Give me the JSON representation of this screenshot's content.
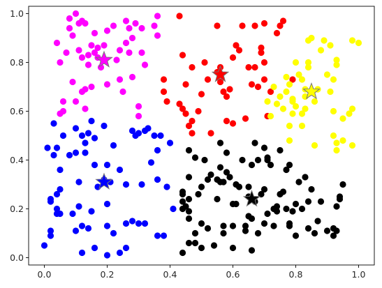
{
  "chart_data": {
    "type": "scatter",
    "title": "",
    "xlabel": "",
    "ylabel": "",
    "xlim": [
      -0.05,
      1.05
    ],
    "ylim": [
      -0.03,
      1.03
    ],
    "grid": false,
    "legend": "none",
    "x_ticks": [
      "0.0",
      "0.2",
      "0.4",
      "0.6",
      "0.8",
      "1.0"
    ],
    "y_ticks": [
      "0.0",
      "0.2",
      "0.4",
      "0.6",
      "0.8",
      "1.0"
    ],
    "series": [
      {
        "color": "#ff00ff",
        "points": [
          [
            0.04,
            0.88
          ],
          [
            0.05,
            0.8
          ],
          [
            0.06,
            0.6
          ],
          [
            0.05,
            0.59
          ],
          [
            0.06,
            0.64
          ],
          [
            0.07,
            0.84
          ],
          [
            0.08,
            0.94
          ],
          [
            0.09,
            0.72
          ],
          [
            0.08,
            0.98
          ],
          [
            0.09,
            0.91
          ],
          [
            0.1,
            0.64
          ],
          [
            0.1,
            1.0
          ],
          [
            0.11,
            0.96
          ],
          [
            0.11,
            0.85
          ],
          [
            0.12,
            0.82
          ],
          [
            0.12,
            0.68
          ],
          [
            0.12,
            0.97
          ],
          [
            0.13,
            0.61
          ],
          [
            0.13,
            0.69
          ],
          [
            0.13,
            0.96
          ],
          [
            0.14,
            0.79
          ],
          [
            0.14,
            0.83
          ],
          [
            0.15,
            0.87
          ],
          [
            0.15,
            0.7
          ],
          [
            0.16,
            0.84
          ],
          [
            0.16,
            0.92
          ],
          [
            0.17,
            0.82
          ],
          [
            0.17,
            0.86
          ],
          [
            0.18,
            0.78
          ],
          [
            0.19,
            0.87
          ],
          [
            0.2,
            0.71
          ],
          [
            0.2,
            0.93
          ],
          [
            0.22,
            0.95
          ],
          [
            0.23,
            0.81
          ],
          [
            0.24,
            0.85
          ],
          [
            0.24,
            0.73
          ],
          [
            0.25,
            0.68
          ],
          [
            0.26,
            0.97
          ],
          [
            0.26,
            0.88
          ],
          [
            0.27,
            0.94
          ],
          [
            0.27,
            0.84
          ],
          [
            0.28,
            0.74
          ],
          [
            0.28,
            0.9
          ],
          [
            0.29,
            0.96
          ],
          [
            0.3,
            0.62
          ],
          [
            0.3,
            0.58
          ],
          [
            0.31,
            0.84
          ],
          [
            0.31,
            0.94
          ],
          [
            0.32,
            0.79
          ],
          [
            0.35,
            0.95
          ],
          [
            0.36,
            0.91
          ],
          [
            0.36,
            0.99
          ]
        ]
      },
      {
        "color": "#ff0000",
        "points": [
          [
            0.38,
            0.73
          ],
          [
            0.38,
            0.68
          ],
          [
            0.39,
            0.64
          ],
          [
            0.43,
            0.99
          ],
          [
            0.43,
            0.63
          ],
          [
            0.44,
            0.61
          ],
          [
            0.44,
            0.83
          ],
          [
            0.45,
            0.59
          ],
          [
            0.45,
            0.71
          ],
          [
            0.46,
            0.54
          ],
          [
            0.47,
            0.51
          ],
          [
            0.47,
            0.56
          ],
          [
            0.47,
            0.78
          ],
          [
            0.49,
            0.6
          ],
          [
            0.5,
            0.67
          ],
          [
            0.51,
            0.8
          ],
          [
            0.52,
            0.73
          ],
          [
            0.53,
            0.51
          ],
          [
            0.55,
            0.95
          ],
          [
            0.55,
            0.76
          ],
          [
            0.56,
            0.78
          ],
          [
            0.56,
            0.72
          ],
          [
            0.57,
            0.68
          ],
          [
            0.58,
            0.66
          ],
          [
            0.58,
            0.56
          ],
          [
            0.59,
            0.69
          ],
          [
            0.6,
            0.55
          ],
          [
            0.6,
            0.82
          ],
          [
            0.61,
            0.87
          ],
          [
            0.62,
            0.85
          ],
          [
            0.63,
            0.95
          ],
          [
            0.64,
            0.57
          ],
          [
            0.65,
            0.78
          ],
          [
            0.66,
            0.71
          ],
          [
            0.67,
            0.78
          ],
          [
            0.67,
            0.95
          ],
          [
            0.68,
            0.7
          ],
          [
            0.69,
            0.86
          ],
          [
            0.69,
            0.84
          ],
          [
            0.7,
            0.96
          ],
          [
            0.7,
            0.73
          ],
          [
            0.7,
            0.8
          ],
          [
            0.71,
            0.58
          ],
          [
            0.72,
            0.68
          ],
          [
            0.74,
            0.92
          ],
          [
            0.75,
            0.95
          ],
          [
            0.76,
            0.97
          ],
          [
            0.79,
            0.73
          ]
        ]
      },
      {
        "color": "#ffff00",
        "points": [
          [
            0.71,
            0.64
          ],
          [
            0.72,
            0.58
          ],
          [
            0.73,
            0.7
          ],
          [
            0.74,
            0.63
          ],
          [
            0.75,
            0.66
          ],
          [
            0.76,
            0.61
          ],
          [
            0.77,
            0.74
          ],
          [
            0.77,
            0.68
          ],
          [
            0.78,
            0.71
          ],
          [
            0.78,
            0.54
          ],
          [
            0.78,
            0.48
          ],
          [
            0.79,
            0.65
          ],
          [
            0.79,
            0.59
          ],
          [
            0.79,
            0.64
          ],
          [
            0.79,
            0.65
          ],
          [
            0.8,
            0.8
          ],
          [
            0.8,
            0.62
          ],
          [
            0.81,
            0.75
          ],
          [
            0.82,
            0.73
          ],
          [
            0.82,
            0.54
          ],
          [
            0.82,
            0.59
          ],
          [
            0.83,
            0.69
          ],
          [
            0.83,
            0.66
          ],
          [
            0.83,
            0.61
          ],
          [
            0.84,
            0.89
          ],
          [
            0.84,
            0.78
          ],
          [
            0.84,
            0.8
          ],
          [
            0.85,
            0.9
          ],
          [
            0.86,
            0.64
          ],
          [
            0.86,
            0.46
          ],
          [
            0.87,
            0.69
          ],
          [
            0.88,
            0.85
          ],
          [
            0.89,
            0.89
          ],
          [
            0.9,
            0.75
          ],
          [
            0.91,
            0.68
          ],
          [
            0.91,
            0.87
          ],
          [
            0.92,
            0.73
          ],
          [
            0.92,
            0.6
          ],
          [
            0.92,
            0.5
          ],
          [
            0.93,
            0.81
          ],
          [
            0.93,
            0.79
          ],
          [
            0.93,
            0.44
          ],
          [
            0.93,
            0.47
          ],
          [
            0.95,
            0.57
          ],
          [
            0.95,
            0.48
          ],
          [
            0.97,
            0.59
          ],
          [
            0.98,
            0.61
          ],
          [
            0.98,
            0.46
          ],
          [
            0.98,
            0.89
          ],
          [
            1.0,
            0.88
          ]
        ]
      },
      {
        "color": "#0000ff",
        "points": [
          [
            0.0,
            0.05
          ],
          [
            0.01,
            0.45
          ],
          [
            0.02,
            0.11
          ],
          [
            0.02,
            0.09
          ],
          [
            0.02,
            0.23
          ],
          [
            0.02,
            0.24
          ],
          [
            0.03,
            0.42
          ],
          [
            0.03,
            0.55
          ],
          [
            0.04,
            0.2
          ],
          [
            0.04,
            0.26
          ],
          [
            0.04,
            0.18
          ],
          [
            0.04,
            0.45
          ],
          [
            0.05,
            0.36
          ],
          [
            0.05,
            0.18
          ],
          [
            0.05,
            0.28
          ],
          [
            0.06,
            0.5
          ],
          [
            0.08,
            0.42
          ],
          [
            0.09,
            0.18
          ],
          [
            0.1,
            0.53
          ],
          [
            0.1,
            0.11
          ],
          [
            0.1,
            0.43
          ],
          [
            0.11,
            0.31
          ],
          [
            0.11,
            0.21
          ],
          [
            0.12,
            0.02
          ],
          [
            0.12,
            0.13
          ],
          [
            0.12,
            0.5
          ],
          [
            0.13,
            0.43
          ],
          [
            0.13,
            0.47
          ],
          [
            0.14,
            0.12
          ],
          [
            0.14,
            0.51
          ],
          [
            0.15,
            0.19
          ],
          [
            0.15,
            0.56
          ],
          [
            0.16,
            0.49
          ],
          [
            0.16,
            0.38
          ],
          [
            0.16,
            0.04
          ],
          [
            0.17,
            0.29
          ],
          [
            0.19,
            0.32
          ],
          [
            0.19,
            0.54
          ],
          [
            0.2,
            0.13
          ],
          [
            0.2,
            0.22
          ],
          [
            0.2,
            0.01
          ],
          [
            0.2,
            0.38
          ],
          [
            0.21,
            0.31
          ],
          [
            0.22,
            0.46
          ],
          [
            0.22,
            0.1
          ],
          [
            0.24,
            0.02
          ],
          [
            0.24,
            0.36
          ],
          [
            0.26,
            0.04
          ],
          [
            0.26,
            0.14
          ],
          [
            0.26,
            0.3
          ],
          [
            0.28,
            0.52
          ],
          [
            0.28,
            0.15
          ],
          [
            0.29,
            0.5
          ],
          [
            0.3,
            0.51
          ],
          [
            0.3,
            0.14
          ],
          [
            0.31,
            0.3
          ],
          [
            0.32,
            0.14
          ],
          [
            0.32,
            0.52
          ],
          [
            0.33,
            0.53
          ],
          [
            0.34,
            0.39
          ],
          [
            0.35,
            0.5
          ],
          [
            0.36,
            0.44
          ],
          [
            0.36,
            0.32
          ],
          [
            0.36,
            0.09
          ],
          [
            0.37,
            0.5
          ],
          [
            0.38,
            0.09
          ],
          [
            0.39,
            0.29
          ],
          [
            0.4,
            0.47
          ],
          [
            0.41,
            0.2
          ]
        ]
      },
      {
        "color": "#000000",
        "points": [
          [
            0.44,
            0.02
          ],
          [
            0.44,
            0.26
          ],
          [
            0.44,
            0.23
          ],
          [
            0.44,
            0.2
          ],
          [
            0.44,
            0.27
          ],
          [
            0.45,
            0.21
          ],
          [
            0.46,
            0.33
          ],
          [
            0.46,
            0.16
          ],
          [
            0.46,
            0.24
          ],
          [
            0.46,
            0.19
          ],
          [
            0.46,
            0.06
          ],
          [
            0.46,
            0.44
          ],
          [
            0.48,
            0.41
          ],
          [
            0.48,
            0.1
          ],
          [
            0.48,
            0.06
          ],
          [
            0.49,
            0.26
          ],
          [
            0.5,
            0.29
          ],
          [
            0.5,
            0.04
          ],
          [
            0.5,
            0.14
          ],
          [
            0.51,
            0.4
          ],
          [
            0.52,
            0.12
          ],
          [
            0.52,
            0.32
          ],
          [
            0.53,
            0.34
          ],
          [
            0.54,
            0.05
          ],
          [
            0.55,
            0.24
          ],
          [
            0.55,
            0.32
          ],
          [
            0.56,
            0.37
          ],
          [
            0.56,
            0.31
          ],
          [
            0.56,
            0.47
          ],
          [
            0.57,
            0.13
          ],
          [
            0.57,
            0.1
          ],
          [
            0.57,
            0.31
          ],
          [
            0.58,
            0.35
          ],
          [
            0.58,
            0.43
          ],
          [
            0.59,
            0.33
          ],
          [
            0.6,
            0.13
          ],
          [
            0.6,
            0.22
          ],
          [
            0.6,
            0.04
          ],
          [
            0.61,
            0.22
          ],
          [
            0.61,
            0.3
          ],
          [
            0.62,
            0.29
          ],
          [
            0.63,
            0.4
          ],
          [
            0.64,
            0.11
          ],
          [
            0.64,
            0.13
          ],
          [
            0.65,
            0.29
          ],
          [
            0.65,
            0.17
          ],
          [
            0.65,
            0.25
          ],
          [
            0.66,
            0.16
          ],
          [
            0.66,
            0.38
          ],
          [
            0.66,
            0.03
          ],
          [
            0.67,
            0.23
          ],
          [
            0.67,
            0.47
          ],
          [
            0.68,
            0.1
          ],
          [
            0.68,
            0.4
          ],
          [
            0.69,
            0.26
          ],
          [
            0.7,
            0.14
          ],
          [
            0.7,
            0.28
          ],
          [
            0.7,
            0.45
          ],
          [
            0.71,
            0.4
          ],
          [
            0.71,
            0.18
          ],
          [
            0.71,
            0.41
          ],
          [
            0.72,
            0.38
          ],
          [
            0.73,
            0.2
          ],
          [
            0.73,
            0.13
          ],
          [
            0.74,
            0.21
          ],
          [
            0.74,
            0.19
          ],
          [
            0.75,
            0.26
          ],
          [
            0.75,
            0.44
          ],
          [
            0.76,
            0.27
          ],
          [
            0.77,
            0.36
          ],
          [
            0.77,
            0.2
          ],
          [
            0.78,
            0.38
          ],
          [
            0.78,
            0.13
          ],
          [
            0.78,
            0.14
          ],
          [
            0.79,
            0.19
          ],
          [
            0.8,
            0.22
          ],
          [
            0.8,
            0.09
          ],
          [
            0.81,
            0.31
          ],
          [
            0.82,
            0.2
          ],
          [
            0.83,
            0.33
          ],
          [
            0.84,
            0.12
          ],
          [
            0.84,
            0.23
          ],
          [
            0.85,
            0.28
          ],
          [
            0.86,
            0.1
          ],
          [
            0.87,
            0.15
          ],
          [
            0.88,
            0.23
          ],
          [
            0.9,
            0.11
          ],
          [
            0.92,
            0.09
          ],
          [
            0.92,
            0.12
          ],
          [
            0.93,
            0.11
          ],
          [
            0.93,
            0.21
          ],
          [
            0.94,
            0.24
          ],
          [
            0.94,
            0.25
          ],
          [
            0.95,
            0.3
          ]
        ]
      }
    ],
    "centroids": [
      {
        "x": 0.19,
        "y": 0.81,
        "color": "#ff00ff"
      },
      {
        "x": 0.56,
        "y": 0.75,
        "color": "#ff0000"
      },
      {
        "x": 0.85,
        "y": 0.68,
        "color": "#ffff00"
      },
      {
        "x": 0.19,
        "y": 0.31,
        "color": "#0000ff"
      },
      {
        "x": 0.66,
        "y": 0.24,
        "color": "#000000"
      }
    ]
  }
}
